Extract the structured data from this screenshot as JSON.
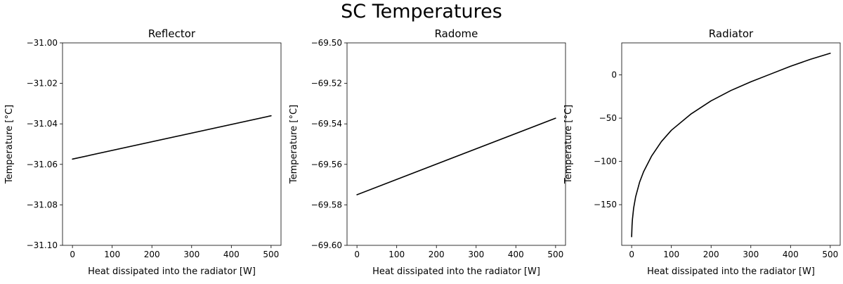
{
  "figure": {
    "title": "SC Temperatures"
  },
  "chart_data": [
    {
      "type": "line",
      "title": "Reflector",
      "xlabel": "Heat dissipated into the radiator [W]",
      "ylabel": "Temperature [°C]",
      "xlim": [
        -25,
        525
      ],
      "ylim": [
        -31.1,
        -31.0
      ],
      "xticks": [
        0,
        100,
        200,
        300,
        400,
        500
      ],
      "xtick_labels": [
        "0",
        "100",
        "200",
        "300",
        "400",
        "500"
      ],
      "yticks": [
        -31.1,
        -31.08,
        -31.06,
        -31.04,
        -31.02,
        -31.0
      ],
      "ytick_labels": [
        "−31.10",
        "−31.08",
        "−31.06",
        "−31.04",
        "−31.02",
        "−31.00"
      ],
      "grid": false,
      "line_color": "#000000",
      "x": [
        0,
        500
      ],
      "y": [
        -31.0574,
        -31.036
      ]
    },
    {
      "type": "line",
      "title": "Radome",
      "xlabel": "Heat dissipated into the radiator [W]",
      "ylabel": "Temperature [°C]",
      "xlim": [
        -25,
        525
      ],
      "ylim": [
        -69.6,
        -69.5
      ],
      "xticks": [
        0,
        100,
        200,
        300,
        400,
        500
      ],
      "xtick_labels": [
        "0",
        "100",
        "200",
        "300",
        "400",
        "500"
      ],
      "yticks": [
        -69.6,
        -69.58,
        -69.56,
        -69.54,
        -69.52,
        -69.5
      ],
      "ytick_labels": [
        "−69.60",
        "−69.58",
        "−69.56",
        "−69.54",
        "−69.52",
        "−69.50"
      ],
      "grid": false,
      "line_color": "#000000",
      "x": [
        0,
        500
      ],
      "y": [
        -69.575,
        -69.5372
      ]
    },
    {
      "type": "line",
      "title": "Radiator",
      "xlabel": "Heat dissipated into the radiator [W]",
      "ylabel": "Temperature [°C]",
      "xlim": [
        -25,
        525
      ],
      "ylim": [
        -197,
        37
      ],
      "xticks": [
        0,
        100,
        200,
        300,
        400,
        500
      ],
      "xtick_labels": [
        "0",
        "100",
        "200",
        "300",
        "400",
        "500"
      ],
      "yticks": [
        -150,
        -100,
        -50,
        0
      ],
      "ytick_labels": [
        "−150",
        "−100",
        "−50",
        "0"
      ],
      "grid": false,
      "line_color": "#000000",
      "x": [
        0,
        1,
        2,
        5,
        10,
        20,
        30,
        50,
        75,
        100,
        150,
        200,
        250,
        300,
        350,
        400,
        450,
        500
      ],
      "y": [
        -187,
        -174,
        -167,
        -154,
        -141,
        -124,
        -112,
        -94,
        -77,
        -64,
        -45,
        -30,
        -18,
        -8,
        1,
        10,
        18,
        25
      ]
    }
  ]
}
